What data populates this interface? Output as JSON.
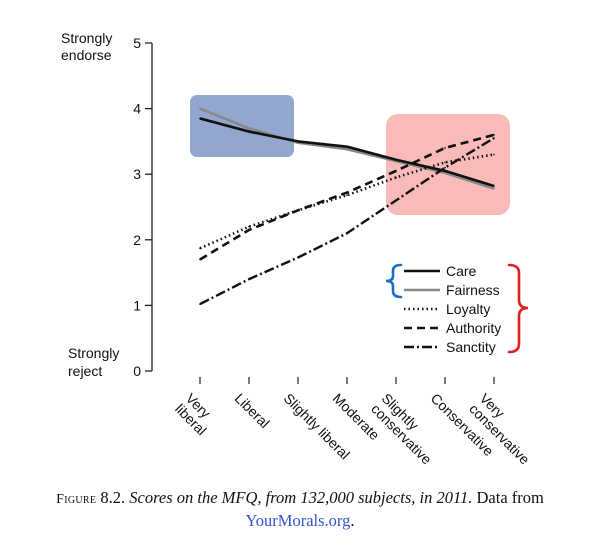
{
  "chart_data": {
    "type": "line",
    "categories": [
      "Very liberal",
      "Liberal",
      "Slightly liberal",
      "Moderate",
      "Slightly conservative",
      "Conservative",
      "Very conservative"
    ],
    "ylim": [
      0,
      5
    ],
    "yticks": [
      0,
      1,
      2,
      3,
      4,
      5
    ],
    "ylabel_top": [
      "Strongly",
      "endorse"
    ],
    "ylabel_bottom": [
      "Strongly",
      "reject"
    ],
    "series": [
      {
        "name": "Care",
        "values": [
          3.85,
          3.65,
          3.5,
          3.42,
          3.22,
          3.05,
          2.82
        ],
        "color": "#111111"
      },
      {
        "name": "Fairness",
        "values": [
          4.0,
          3.7,
          3.48,
          3.38,
          3.2,
          3.02,
          2.78
        ],
        "color": "#888888"
      },
      {
        "name": "Loyalty",
        "values": [
          1.87,
          2.2,
          2.45,
          2.68,
          2.95,
          3.18,
          3.3
        ],
        "color": "#111111"
      },
      {
        "name": "Authority",
        "values": [
          1.7,
          2.15,
          2.45,
          2.72,
          3.05,
          3.4,
          3.6
        ],
        "color": "#111111"
      },
      {
        "name": "Sanctity",
        "values": [
          1.02,
          1.4,
          1.73,
          2.1,
          2.6,
          3.1,
          3.55
        ],
        "color": "#111111"
      }
    ],
    "highlights": [
      {
        "name": "liberal-highlight",
        "color": "#7f96c8"
      },
      {
        "name": "conservative-highlight",
        "color": "#f7a3a3"
      }
    ],
    "bracket_colors": {
      "left": "#1a6fc0",
      "right": "#e0201c"
    }
  },
  "caption": {
    "label": "Figure",
    "number": "8.2.",
    "title": "Scores on the MFQ, from 132,000 subjects, in 2011.",
    "body": "Data from",
    "link": "YourMorals.org",
    "end": "."
  }
}
